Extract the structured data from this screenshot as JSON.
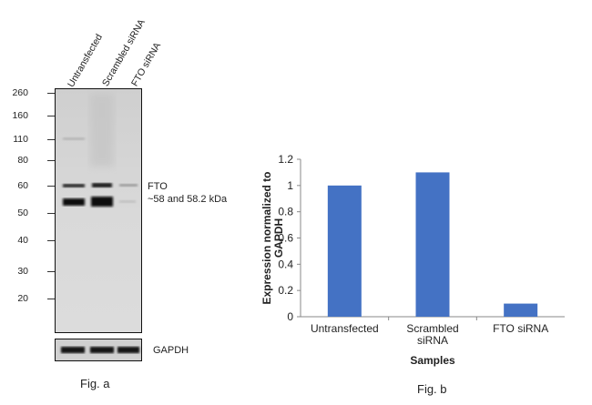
{
  "figure_a": {
    "lane_labels": [
      "Untransfected",
      "Scrambled siRNA",
      "FTO siRNA"
    ],
    "mw_markers": [
      "260",
      "160",
      "110",
      "80",
      "60",
      "50",
      "40",
      "30",
      "20"
    ],
    "target_label": "FTO",
    "target_size": "~58 and 58.2 kDa",
    "loading_control": "GAPDH",
    "caption": "Fig. a"
  },
  "figure_b": {
    "caption": "Fig. b"
  },
  "chart_data": {
    "type": "bar",
    "categories": [
      "Untransfected",
      "Scrambled siRNA",
      "FTO siRNA"
    ],
    "category_lines": [
      [
        "Untransfected"
      ],
      [
        "Scrambled",
        "siRNA"
      ],
      [
        "FTO siRNA"
      ]
    ],
    "values": [
      1.0,
      1.1,
      0.1
    ],
    "xlabel": "Samples",
    "ylabel_lines": [
      "Expression normalized to",
      "GAPDH"
    ],
    "ylim": [
      0,
      1.2
    ],
    "yticks": [
      "0",
      "0.2",
      "0.4",
      "0.6",
      "0.8",
      "1",
      "1.2"
    ],
    "bar_color": "#4472c4",
    "grid": false,
    "legend": "none"
  }
}
